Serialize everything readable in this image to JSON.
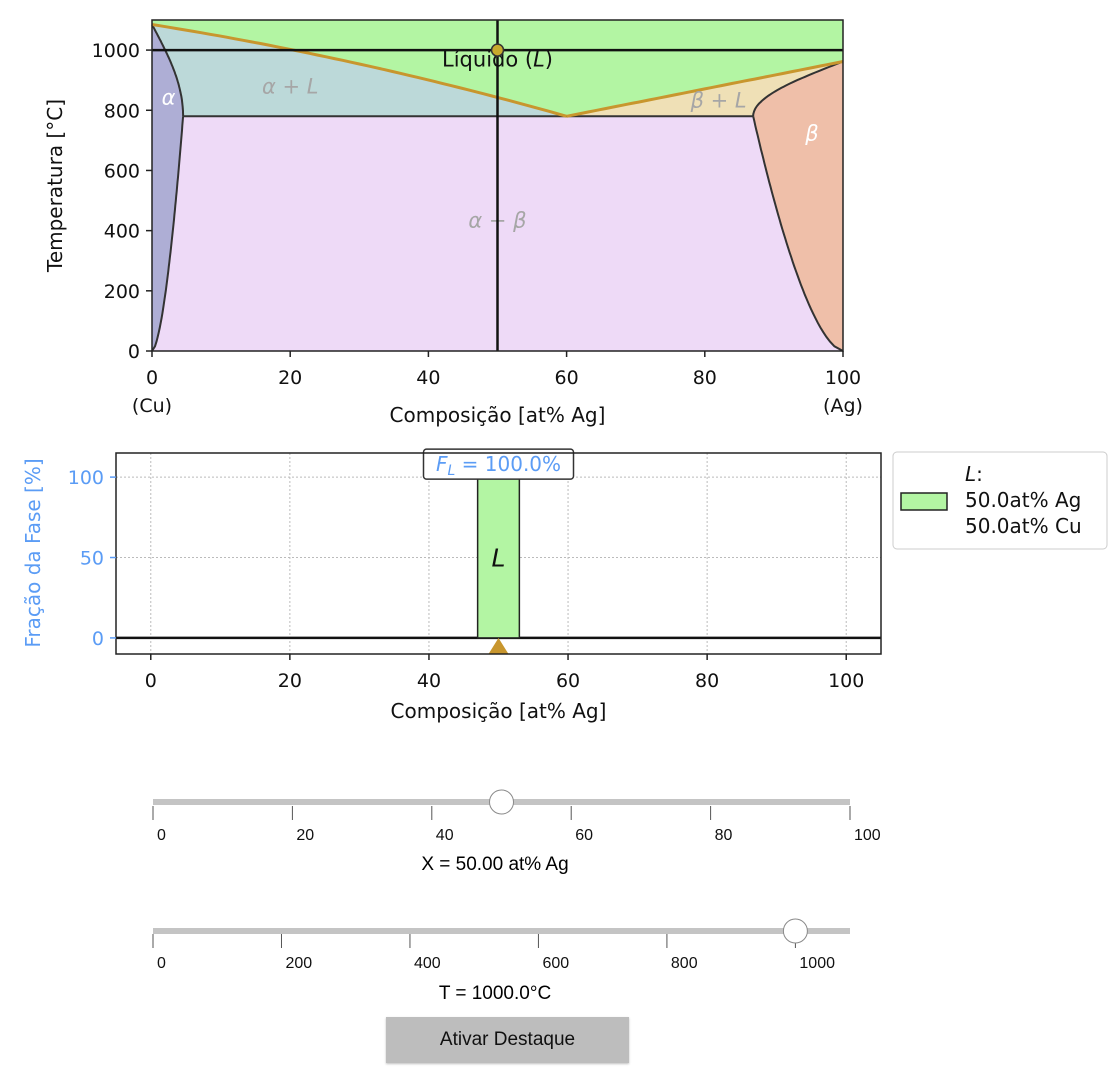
{
  "chart_data": [
    {
      "type": "area",
      "title": "",
      "xlabel": "Composição [at% Ag]",
      "ylabel": "Temperatura [°C]",
      "xlim": [
        0,
        100
      ],
      "ylim": [
        0,
        1100
      ],
      "xticks": [
        0,
        20,
        40,
        60,
        80,
        100
      ],
      "xtick_sublabels": {
        "0": "(Cu)",
        "100": "(Ag)"
      },
      "yticks": [
        0,
        200,
        400,
        600,
        800,
        1000
      ],
      "grid": false,
      "melting_points": {
        "Cu": 1085,
        "Ag": 962
      },
      "eutectic": {
        "composition": 60,
        "temperature": 780,
        "alpha_limit": 4.5,
        "beta_limit": 87
      },
      "regions": [
        {
          "name": "Líquido (L)",
          "label_main": "Líquido (",
          "label_italic": "L",
          "label_tail": ")",
          "color": "#b3f5a3"
        },
        {
          "name": "α + L",
          "label": "α + L",
          "color": "#bcd9d9"
        },
        {
          "name": "β + L",
          "label": "β + L",
          "color": "#efe0b6"
        },
        {
          "name": "α",
          "label": "α",
          "color": "#aeaed5"
        },
        {
          "name": "β",
          "label": "β",
          "color": "#efbfa9"
        },
        {
          "name": "α + β",
          "label": "α + β",
          "color": "#eedaf7"
        }
      ],
      "liquidus_color": "#c8962e",
      "state_point": {
        "composition": 50.0,
        "temperature": 1000.0,
        "color": "#c8aa2c"
      }
    },
    {
      "type": "bar",
      "title": "",
      "xlabel": "Composição [at% Ag]",
      "ylabel": "Fração da Fase [%]",
      "xlim": [
        -5,
        105
      ],
      "ylim": [
        -10,
        115
      ],
      "xticks": [
        0,
        20,
        40,
        60,
        80,
        100
      ],
      "yticks": [
        0,
        50,
        100
      ],
      "grid": true,
      "bars": [
        {
          "phase": "L",
          "composition": 50.0,
          "fraction": 100.0,
          "half_width": 3,
          "color": "#b3f5a3"
        }
      ],
      "annotation": {
        "prefix": "F",
        "subscript": "L",
        "text": " = 100.0%"
      },
      "marker": {
        "composition": 50.0,
        "color": "#c8962e"
      },
      "legend": {
        "placement": "outside-right",
        "entries": [
          {
            "title": "L",
            "lines": [
              "50.0at% Ag",
              "50.0at% Cu"
            ],
            "color": "#b3f5a3"
          }
        ]
      }
    }
  ],
  "colors": {
    "ylabel_accent": "#5b9cf5",
    "slider_track": "#c4c4c4"
  },
  "controls": {
    "x_slider": {
      "min": 0,
      "max": 100,
      "value": 50.0,
      "ticks": [
        0,
        20,
        40,
        60,
        80,
        100
      ],
      "readout": "X = 50.00 at% Ag"
    },
    "t_slider": {
      "min": 0,
      "max": 1085,
      "value": 1000.0,
      "ticks": [
        0,
        200,
        400,
        600,
        800,
        1000
      ],
      "readout": "T = 1000.0°C"
    },
    "highlight_button_label": "Ativar Destaque"
  }
}
